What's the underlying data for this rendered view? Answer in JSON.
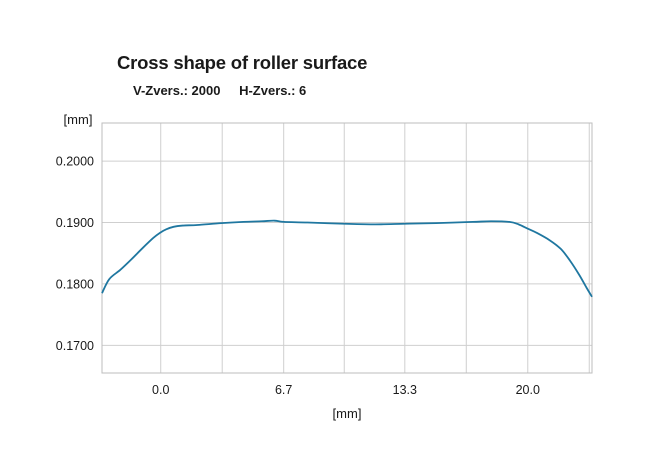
{
  "chart_data": {
    "type": "line",
    "title": "Cross shape of roller surface",
    "subtitle": {
      "v_zoom": "V-Zvers.: 2000",
      "h_zoom": "H-Zvers.: 6"
    },
    "xlabel": "[mm]",
    "ylabel": "[mm]",
    "xlim": [
      -3.2,
      23.5
    ],
    "ylim": [
      0.1655,
      0.2062
    ],
    "x_ticks": [
      0.0,
      6.7,
      13.3,
      20.0
    ],
    "x_tick_labels": [
      "0.0",
      "6.7",
      "13.3",
      "20.0"
    ],
    "y_ticks": [
      0.17,
      0.18,
      0.19,
      0.2
    ],
    "y_tick_labels": [
      "0.1700",
      "0.1800",
      "0.1900",
      "0.2000"
    ],
    "grid": true,
    "line_color": "#1f77a0",
    "series": [
      {
        "x": [
          -3.2,
          -2.8,
          -2.2,
          -1.6,
          -1.0,
          -0.4,
          0.0,
          0.3,
          0.7,
          1.2,
          2.0,
          3.3,
          4.5,
          5.5,
          6.2,
          6.7,
          8.0,
          10.0,
          11.7,
          13.3,
          15.0,
          17.0,
          18.0,
          19.0,
          19.5,
          20.0,
          20.5,
          21.2,
          21.8,
          22.3,
          22.8,
          23.2,
          23.5
        ],
        "y": [
          0.1785,
          0.1808,
          0.1823,
          0.184,
          0.1858,
          0.1875,
          0.1884,
          0.1889,
          0.1893,
          0.1895,
          0.1896,
          0.1899,
          0.1901,
          0.1902,
          0.1903,
          0.1901,
          0.19,
          0.1898,
          0.1897,
          0.1898,
          0.1899,
          0.1901,
          0.1902,
          0.1901,
          0.1897,
          0.189,
          0.1883,
          0.1871,
          0.1857,
          0.1838,
          0.1815,
          0.1794,
          0.1779
        ]
      }
    ]
  }
}
